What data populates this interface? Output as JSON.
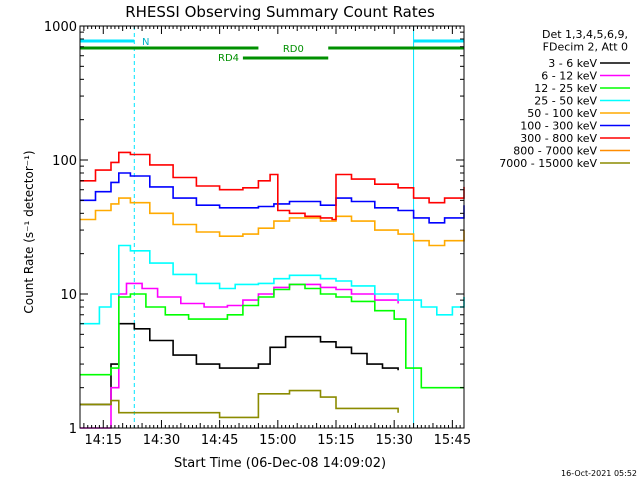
{
  "chart_data": {
    "type": "line",
    "title": "RHESSI Observing Summary Count Rates",
    "xlabel": "Start Time (06-Dec-08 14:09:02)",
    "ylabel": "Count Rate (s⁻¹ detector⁻¹)",
    "yscale": "log",
    "ylim": [
      1,
      1000
    ],
    "xlim_minutes": [
      0,
      99
    ],
    "x_ticks": [
      {
        "label": "14:15",
        "t": 6
      },
      {
        "label": "14:30",
        "t": 21
      },
      {
        "label": "14:45",
        "t": 36
      },
      {
        "label": "15:00",
        "t": 51
      },
      {
        "label": "15:15",
        "t": 66
      },
      {
        "label": "15:30",
        "t": 81
      },
      {
        "label": "15:45",
        "t": 96
      }
    ],
    "y_ticks": [
      {
        "label": "1",
        "v": 1
      },
      {
        "label": "10",
        "v": 10
      },
      {
        "label": "100",
        "v": 100
      },
      {
        "label": "1000",
        "v": 1000
      }
    ],
    "grid": false,
    "legend_position": "right",
    "legend_header": [
      "Det 1,3,4,5,6,9,",
      "FDecim 2, Att 0"
    ],
    "series": [
      {
        "name": "3 - 6 keV",
        "color": "#000000",
        "points": [
          [
            0,
            1.5
          ],
          [
            4,
            1.5
          ],
          [
            8,
            3.0
          ],
          [
            10,
            6.0
          ],
          [
            14,
            5.5
          ],
          [
            18,
            4.5
          ],
          [
            24,
            3.5
          ],
          [
            30,
            3.0
          ],
          [
            36,
            2.8
          ],
          [
            42,
            2.8
          ],
          [
            46,
            3.0
          ],
          [
            49,
            4.0
          ],
          [
            53,
            4.8
          ],
          [
            58,
            4.8
          ],
          [
            62,
            4.4
          ],
          [
            66,
            4.0
          ],
          [
            70,
            3.6
          ],
          [
            74,
            3.0
          ],
          [
            78,
            2.8
          ],
          [
            82,
            2.7
          ]
        ]
      },
      {
        "name": "6 - 12 keV",
        "color": "#ff00ff",
        "points": [
          [
            0,
            1.0
          ],
          [
            8,
            2.0
          ],
          [
            10,
            10.0
          ],
          [
            12,
            12.0
          ],
          [
            16,
            11.0
          ],
          [
            20,
            9.5
          ],
          [
            26,
            8.5
          ],
          [
            32,
            8.0
          ],
          [
            38,
            8.2
          ],
          [
            42,
            9.0
          ],
          [
            46,
            10.0
          ],
          [
            50,
            11.2
          ],
          [
            54,
            11.8
          ],
          [
            58,
            11.8
          ],
          [
            62,
            11.2
          ],
          [
            66,
            10.8
          ],
          [
            70,
            10.0
          ],
          [
            76,
            9.0
          ],
          [
            82,
            8.5
          ]
        ]
      },
      {
        "name": "12 - 25 keV",
        "color": "#00ff00",
        "points": [
          [
            0,
            2.5
          ],
          [
            8,
            2.8
          ],
          [
            10,
            9.5
          ],
          [
            13,
            10.0
          ],
          [
            17,
            8.0
          ],
          [
            22,
            7.0
          ],
          [
            28,
            6.5
          ],
          [
            34,
            6.5
          ],
          [
            38,
            7.0
          ],
          [
            42,
            8.2
          ],
          [
            46,
            9.5
          ],
          [
            50,
            10.8
          ],
          [
            54,
            11.8
          ],
          [
            58,
            11.0
          ],
          [
            62,
            10.0
          ],
          [
            66,
            9.5
          ],
          [
            70,
            8.8
          ],
          [
            76,
            7.5
          ],
          [
            81,
            6.5
          ],
          [
            84,
            2.8
          ],
          [
            88,
            2.0
          ],
          [
            99,
            2.0
          ]
        ]
      },
      {
        "name": "25 - 50 keV",
        "color": "#00ffff",
        "points": [
          [
            0,
            6.0
          ],
          [
            5,
            8.0
          ],
          [
            8,
            10.0
          ],
          [
            10,
            23.0
          ],
          [
            13,
            21.0
          ],
          [
            18,
            17.0
          ],
          [
            24,
            14.0
          ],
          [
            30,
            12.0
          ],
          [
            36,
            11.0
          ],
          [
            40,
            11.8
          ],
          [
            46,
            12.0
          ],
          [
            50,
            13.0
          ],
          [
            54,
            13.8
          ],
          [
            58,
            13.8
          ],
          [
            62,
            13.0
          ],
          [
            66,
            12.5
          ],
          [
            70,
            11.5
          ],
          [
            76,
            10.0
          ],
          [
            82,
            9.0
          ],
          [
            88,
            8.0
          ],
          [
            92,
            7.0
          ],
          [
            96,
            8.0
          ],
          [
            99,
            9.5
          ]
        ]
      },
      {
        "name": "50 - 100 keV",
        "color": "#ffaa00",
        "points": [
          [
            0,
            36.0
          ],
          [
            4,
            42.0
          ],
          [
            8,
            47.0
          ],
          [
            10,
            52.0
          ],
          [
            13,
            48.0
          ],
          [
            18,
            40.0
          ],
          [
            24,
            33.0
          ],
          [
            30,
            29.0
          ],
          [
            36,
            27.0
          ],
          [
            42,
            28.0
          ],
          [
            46,
            31.0
          ],
          [
            50,
            35.0
          ],
          [
            54,
            37.0
          ],
          [
            58,
            37.0
          ],
          [
            62,
            35.0
          ],
          [
            66,
            38.0
          ],
          [
            70,
            35.0
          ],
          [
            76,
            30.0
          ],
          [
            82,
            28.0
          ],
          [
            86,
            25.0
          ],
          [
            90,
            23.0
          ],
          [
            94,
            25.0
          ],
          [
            99,
            30.0
          ]
        ]
      },
      {
        "name": "100 - 300 keV",
        "color": "#0000ff",
        "points": [
          [
            0,
            50.0
          ],
          [
            4,
            58.0
          ],
          [
            8,
            68.0
          ],
          [
            10,
            80.0
          ],
          [
            13,
            76.0
          ],
          [
            18,
            63.0
          ],
          [
            24,
            52.0
          ],
          [
            30,
            46.0
          ],
          [
            36,
            44.0
          ],
          [
            42,
            44.0
          ],
          [
            46,
            45.0
          ],
          [
            50,
            47.0
          ],
          [
            54,
            49.0
          ],
          [
            58,
            49.0
          ],
          [
            62,
            46.0
          ],
          [
            66,
            52.0
          ],
          [
            70,
            49.0
          ],
          [
            76,
            44.0
          ],
          [
            82,
            42.0
          ],
          [
            86,
            37.0
          ],
          [
            90,
            34.0
          ],
          [
            94,
            37.0
          ],
          [
            99,
            46.0
          ]
        ]
      },
      {
        "name": "300 - 800 keV",
        "color": "#ff0000",
        "points": [
          [
            0,
            70.0
          ],
          [
            4,
            84.0
          ],
          [
            8,
            96.0
          ],
          [
            10,
            114.0
          ],
          [
            13,
            110.0
          ],
          [
            18,
            92.0
          ],
          [
            24,
            74.0
          ],
          [
            30,
            64.0
          ],
          [
            36,
            60.0
          ],
          [
            42,
            62.0
          ],
          [
            46,
            70.0
          ],
          [
            49,
            78.0
          ],
          [
            51,
            42.0
          ],
          [
            54,
            40.0
          ],
          [
            58,
            38.0
          ],
          [
            62,
            37.0
          ],
          [
            65,
            36.0
          ],
          [
            66,
            78.0
          ],
          [
            70,
            72.0
          ],
          [
            76,
            66.0
          ],
          [
            82,
            62.0
          ],
          [
            86,
            52.0
          ],
          [
            90,
            48.0
          ],
          [
            94,
            52.0
          ],
          [
            99,
            63.0
          ]
        ]
      },
      {
        "name": "800 - 7000 keV",
        "color": "#ff8c00",
        "points": []
      },
      {
        "name": "7000 - 15000 keV",
        "color": "#8b8b00",
        "points": [
          [
            0,
            1.5
          ],
          [
            8,
            1.6
          ],
          [
            10,
            1.3
          ],
          [
            36,
            1.2
          ],
          [
            46,
            1.8
          ],
          [
            54,
            1.9
          ],
          [
            62,
            1.7
          ],
          [
            66,
            1.4
          ],
          [
            82,
            1.3
          ]
        ]
      }
    ],
    "annotations": {
      "saa_label": "N",
      "rd0_label": "RD0",
      "rd4_label": "RD4"
    }
  },
  "footer_timestamp": "16-Oct-2021 05:52"
}
